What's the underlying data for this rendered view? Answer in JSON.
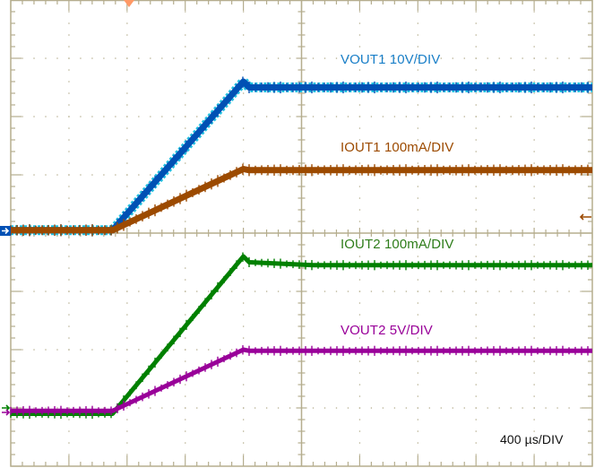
{
  "chart_data": {
    "type": "line",
    "title": "",
    "xlabel": "",
    "ylabel": "",
    "timebase": "400 µs/DIV",
    "grid": true,
    "divisions": {
      "x": 10,
      "y": 8
    },
    "x_unit": "µs",
    "x_per_div": 400,
    "x": [
      -1800,
      -800,
      0,
      100,
      900,
      1000,
      2200
    ],
    "series": [
      {
        "name": "VOUT1 10V/DIV",
        "color": "#0050b4",
        "units_per_div": 10,
        "unit": "V",
        "ground_div": 0.05,
        "points_div": [
          [
            -5.0,
            0.05
          ],
          [
            -3.25,
            0.05
          ],
          [
            -1.0,
            2.6
          ],
          [
            -1.0,
            2.6
          ],
          [
            -0.9,
            2.5
          ],
          [
            0.2,
            2.5
          ],
          [
            5.0,
            2.5
          ]
        ]
      },
      {
        "name": "IOUT1 100mA/DIV",
        "color": "#9c4a00",
        "units_per_div": 100,
        "unit": "mA",
        "ground_div": 0.3,
        "points_div": [
          [
            -5.0,
            0.05
          ],
          [
            -3.25,
            0.05
          ],
          [
            -1.0,
            1.1
          ],
          [
            -0.9,
            1.08
          ],
          [
            0.2,
            1.08
          ],
          [
            5.0,
            1.08
          ]
        ]
      },
      {
        "name": "IOUT2 100mA/DIV",
        "color": "#008000",
        "units_per_div": 100,
        "unit": "mA",
        "ground_div": -3.0,
        "points_div": [
          [
            -5.0,
            -3.1
          ],
          [
            -3.25,
            -3.1
          ],
          [
            -1.0,
            -0.4
          ],
          [
            -0.9,
            -0.5
          ],
          [
            0.2,
            -0.55
          ],
          [
            5.0,
            -0.55
          ]
        ]
      },
      {
        "name": "VOUT2 5V/DIV",
        "color": "#990099",
        "units_per_div": 5,
        "unit": "V",
        "ground_div": -3.0,
        "points_div": [
          [
            -5.0,
            -3.05
          ],
          [
            -3.25,
            -3.05
          ],
          [
            -1.0,
            -2.0
          ],
          [
            -0.9,
            -2.02
          ],
          [
            0.2,
            -2.02
          ],
          [
            5.0,
            -2.02
          ]
        ]
      }
    ],
    "annotations": [
      {
        "text": "VOUT1 10V/DIV",
        "color": "#1a7fc8"
      },
      {
        "text": "IOUT1 100mA/DIV",
        "color": "#9c4a00"
      },
      {
        "text": "IOUT2 100mA/DIV",
        "color": "#2e7d1a"
      },
      {
        "text": "VOUT2 5V/DIV",
        "color": "#990099"
      },
      {
        "text": "400 µs/DIV",
        "color": "#111111"
      }
    ],
    "legend_position": "inline"
  },
  "labels": {
    "vout1": "VOUT1 10V/DIV",
    "iout1": "IOUT1 100mA/DIV",
    "iout2": "IOUT2 100mA/DIV",
    "vout2": "VOUT2 5V/DIV",
    "timebase": "400 µs/DIV"
  },
  "colors": {
    "grid": "#b5ad8e",
    "vout1": "#0050b4",
    "vout1_edge": "#20c0e0",
    "iout1": "#9c4a00",
    "iout2": "#008000",
    "vout2": "#990099",
    "trigger": "#ff9966"
  }
}
